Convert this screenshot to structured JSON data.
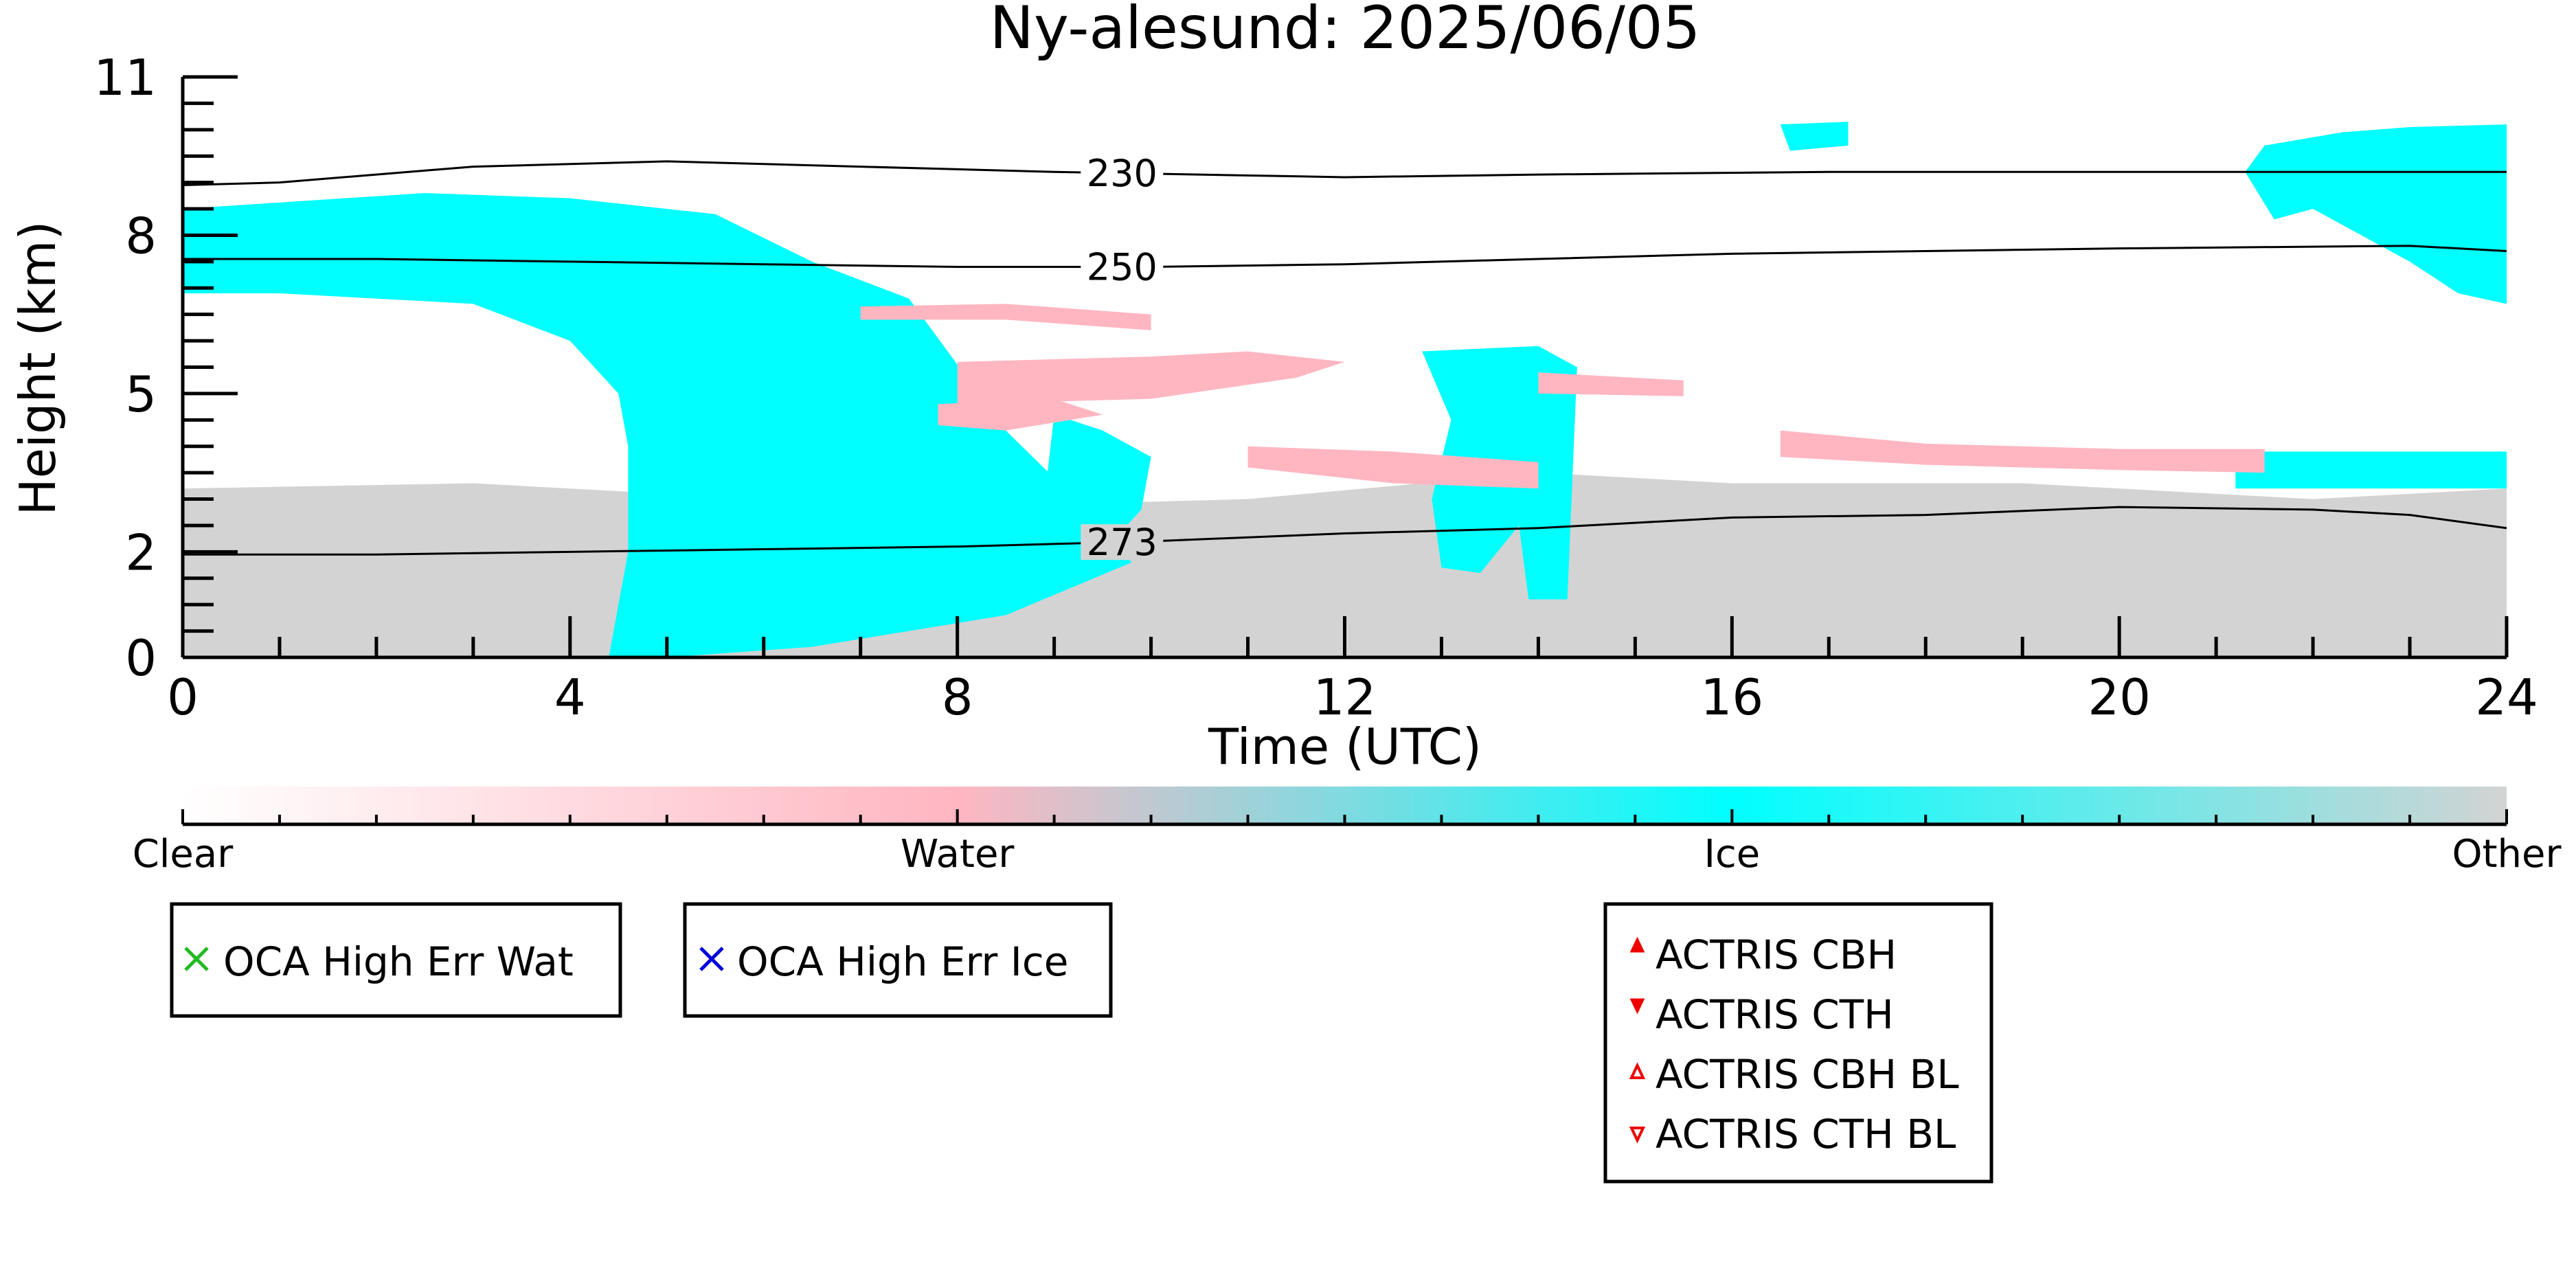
{
  "chart_data": {
    "type": "heatmap",
    "title": "Ny-alesund: 2025/06/05",
    "xlabel": "Time (UTC)",
    "ylabel": "Height (km)",
    "xlim": [
      0,
      24
    ],
    "ylim": [
      0,
      11
    ],
    "x_ticks": [
      0,
      4,
      8,
      12,
      16,
      20,
      24
    ],
    "y_ticks": [
      0,
      2,
      5,
      8,
      11
    ],
    "colorbar": {
      "labels": [
        "Clear",
        "Water",
        "Ice",
        "Other"
      ],
      "colors": [
        "#ffffff",
        "#ffb6c1",
        "#00ffff",
        "#d3d3d3"
      ],
      "range": [
        0,
        3
      ]
    },
    "classes": {
      "Clear": "#ffffff",
      "Water": "#ffb6c1",
      "Ice": "#00ffff",
      "Other": "#d3d3d3"
    },
    "contours": [
      {
        "label": "230",
        "points": [
          [
            0,
            8.95
          ],
          [
            1,
            9.0
          ],
          [
            3,
            9.3
          ],
          [
            5,
            9.4
          ],
          [
            7,
            9.3
          ],
          [
            9,
            9.2
          ],
          [
            12,
            9.1
          ],
          [
            14,
            9.15
          ],
          [
            17,
            9.2
          ],
          [
            20,
            9.2
          ],
          [
            24,
            9.2
          ]
        ]
      },
      {
        "label": "250",
        "points": [
          [
            0,
            7.55
          ],
          [
            2,
            7.55
          ],
          [
            4,
            7.5
          ],
          [
            6,
            7.45
          ],
          [
            8,
            7.4
          ],
          [
            10,
            7.4
          ],
          [
            12,
            7.45
          ],
          [
            14,
            7.55
          ],
          [
            16,
            7.65
          ],
          [
            18,
            7.7
          ],
          [
            20,
            7.75
          ],
          [
            23,
            7.8
          ],
          [
            24,
            7.7
          ]
        ]
      },
      {
        "label": "273",
        "points": [
          [
            0,
            1.95
          ],
          [
            2,
            1.95
          ],
          [
            4,
            2.0
          ],
          [
            6,
            2.05
          ],
          [
            8,
            2.1
          ],
          [
            10,
            2.2
          ],
          [
            12,
            2.35
          ],
          [
            14,
            2.45
          ],
          [
            16,
            2.65
          ],
          [
            18,
            2.7
          ],
          [
            20,
            2.85
          ],
          [
            22,
            2.8
          ],
          [
            23,
            2.7
          ],
          [
            24,
            2.45
          ]
        ]
      }
    ],
    "regions": [
      {
        "class": "Other",
        "points": [
          [
            0,
            0
          ],
          [
            0,
            3.2
          ],
          [
            3,
            3.3
          ],
          [
            6,
            3.0
          ],
          [
            9,
            2.9
          ],
          [
            11,
            3.0
          ],
          [
            14,
            3.5
          ],
          [
            16,
            3.3
          ],
          [
            19,
            3.3
          ],
          [
            22,
            3.0
          ],
          [
            24,
            3.2
          ],
          [
            24,
            0
          ]
        ]
      },
      {
        "class": "Ice",
        "points": [
          [
            0,
            8.5
          ],
          [
            2.5,
            8.8
          ],
          [
            4,
            8.7
          ],
          [
            5.5,
            8.4
          ],
          [
            6.5,
            7.5
          ],
          [
            7.5,
            6.8
          ],
          [
            8.5,
            4.3
          ],
          [
            9.5,
            2.5
          ],
          [
            9.8,
            1.8
          ],
          [
            8.5,
            0.8
          ],
          [
            6.5,
            0.2
          ],
          [
            5,
            0
          ],
          [
            4.4,
            0
          ],
          [
            4.6,
            2.0
          ],
          [
            4.6,
            4.0
          ],
          [
            4.5,
            5.0
          ],
          [
            4.0,
            6.0
          ],
          [
            3.0,
            6.7
          ],
          [
            1.0,
            6.9
          ],
          [
            0,
            6.9
          ]
        ]
      },
      {
        "class": "Ice",
        "points": [
          [
            9.0,
            4.6
          ],
          [
            9.5,
            4.3
          ],
          [
            10.0,
            3.8
          ],
          [
            9.9,
            2.8
          ],
          [
            9.5,
            2.0
          ],
          [
            9.0,
            1.5
          ],
          [
            8.9,
            3.0
          ]
        ]
      },
      {
        "class": "Ice",
        "points": [
          [
            21.5,
            9.7
          ],
          [
            22.3,
            9.95
          ],
          [
            23,
            10.05
          ],
          [
            24,
            10.1
          ],
          [
            24,
            6.7
          ],
          [
            23.5,
            6.9
          ],
          [
            23,
            7.5
          ],
          [
            22,
            8.5
          ],
          [
            21.6,
            8.3
          ],
          [
            21.3,
            9.2
          ]
        ]
      },
      {
        "class": "Ice",
        "points": [
          [
            12.8,
            5.8
          ],
          [
            14,
            5.9
          ],
          [
            14.4,
            5.5
          ],
          [
            14.3,
            1.1
          ],
          [
            13.9,
            1.1
          ],
          [
            13.8,
            2.5
          ],
          [
            13.4,
            1.6
          ],
          [
            13.0,
            1.7
          ],
          [
            12.9,
            3.0
          ],
          [
            13.1,
            4.5
          ]
        ]
      },
      {
        "class": "Ice",
        "points": [
          [
            16.5,
            10.1
          ],
          [
            17.2,
            10.15
          ],
          [
            17.2,
            9.7
          ],
          [
            16.6,
            9.6
          ]
        ]
      },
      {
        "class": "Ice",
        "points": [
          [
            21.2,
            3.9
          ],
          [
            24,
            3.9
          ],
          [
            24,
            3.2
          ],
          [
            21.2,
            3.2
          ]
        ]
      },
      {
        "class": "Water",
        "points": [
          [
            7.0,
            6.65
          ],
          [
            8.5,
            6.7
          ],
          [
            10.0,
            6.5
          ],
          [
            10.0,
            6.2
          ],
          [
            8.5,
            6.4
          ],
          [
            7.0,
            6.4
          ]
        ]
      },
      {
        "class": "Water",
        "points": [
          [
            8.0,
            5.6
          ],
          [
            10,
            5.7
          ],
          [
            11,
            5.8
          ],
          [
            12,
            5.6
          ],
          [
            11.5,
            5.3
          ],
          [
            10,
            4.9
          ],
          [
            8.0,
            4.8
          ]
        ]
      },
      {
        "class": "Water",
        "points": [
          [
            7.8,
            4.8
          ],
          [
            9,
            4.9
          ],
          [
            9.5,
            4.6
          ],
          [
            8.5,
            4.3
          ],
          [
            7.8,
            4.4
          ]
        ]
      },
      {
        "class": "Water",
        "points": [
          [
            11.0,
            4.0
          ],
          [
            12.5,
            3.9
          ],
          [
            14,
            3.7
          ],
          [
            14,
            3.2
          ],
          [
            12.5,
            3.3
          ],
          [
            11,
            3.6
          ]
        ]
      },
      {
        "class": "Water",
        "points": [
          [
            14.0,
            5.4
          ],
          [
            15.5,
            5.25
          ],
          [
            15.5,
            4.95
          ],
          [
            14.0,
            5.0
          ]
        ]
      },
      {
        "class": "Water",
        "points": [
          [
            16.5,
            4.3
          ],
          [
            18,
            4.05
          ],
          [
            20,
            3.95
          ],
          [
            21.5,
            3.95
          ],
          [
            21.5,
            3.5
          ],
          [
            20,
            3.55
          ],
          [
            18,
            3.65
          ],
          [
            16.5,
            3.8
          ]
        ]
      }
    ]
  },
  "legends": {
    "oca_water": {
      "label": "OCA High Err Wat",
      "marker": "x",
      "color": "#22bb22"
    },
    "oca_ice": {
      "label": "OCA High Err Ice",
      "marker": "x",
      "color": "#0000dd"
    },
    "actris": [
      {
        "label": "ACTRIS CBH",
        "marker": "triangle-up-filled",
        "color": "#ee0000"
      },
      {
        "label": "ACTRIS CTH",
        "marker": "triangle-down-filled",
        "color": "#ee0000"
      },
      {
        "label": "ACTRIS CBH BL",
        "marker": "triangle-up-open",
        "color": "#ee0000"
      },
      {
        "label": "ACTRIS CTH BL",
        "marker": "triangle-down-open",
        "color": "#ee0000"
      }
    ]
  }
}
